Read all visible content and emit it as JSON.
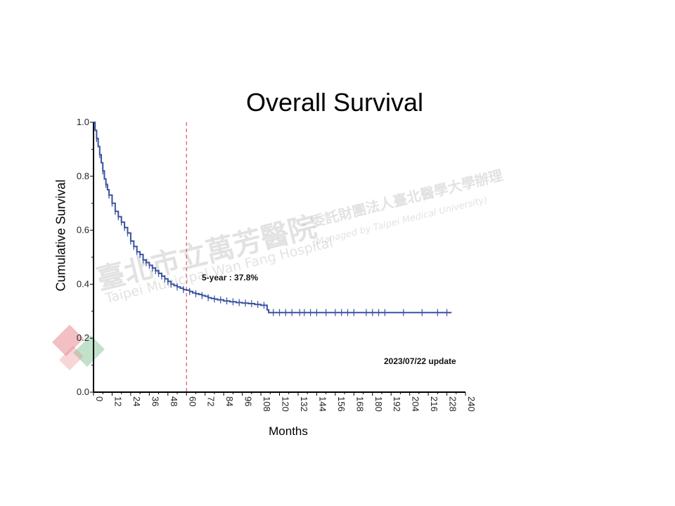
{
  "slide": {
    "title": "Overall Survival",
    "annotation_5yr": "5-year : 37.8%",
    "update_note": "2023/07/22 update"
  },
  "watermark": {
    "chinese_name": "臺北市立萬芳醫院",
    "chinese_sub": "- 委託財團法人臺北醫學大學辦理",
    "english_name": "Taipei Municipal Wan Fang Hospital",
    "english_sub": "(Managed by Taipei Medical University)"
  },
  "colors": {
    "curve": "#3a52a0",
    "reference_line": "#e0505a",
    "axis": "#000000",
    "logo_red": "#e88a8f",
    "logo_green": "#8fc8a0"
  },
  "chart_data": {
    "type": "line",
    "title": "Overall Survival",
    "xlabel": "Months",
    "ylabel": "Cumulative Survival",
    "xlim": [
      0,
      240
    ],
    "ylim": [
      0,
      1.0
    ],
    "x_ticks": [
      0,
      12,
      24,
      36,
      48,
      60,
      72,
      84,
      96,
      108,
      120,
      132,
      144,
      156,
      168,
      180,
      192,
      204,
      216,
      228,
      240
    ],
    "y_ticks": [
      "0.0",
      "0.2",
      "0.4",
      "0.6",
      "0.8",
      "1.0"
    ],
    "y_tick_values": [
      0,
      0.2,
      0.4,
      0.6,
      0.8,
      1.0
    ],
    "reference_line_x": 60,
    "grid": false,
    "series": [
      {
        "step": true,
        "x": [
          0,
          1,
          2,
          3,
          4,
          5,
          6,
          7,
          8,
          9,
          10,
          12,
          14,
          16,
          18,
          20,
          22,
          24,
          26,
          28,
          30,
          32,
          34,
          36,
          38,
          40,
          42,
          44,
          46,
          48,
          50,
          52,
          54,
          56,
          58,
          60,
          62,
          64,
          66,
          68,
          70,
          72,
          74,
          76,
          78,
          80,
          84,
          88,
          92,
          96,
          100,
          104,
          108,
          112,
          113,
          120,
          132,
          144,
          156,
          168,
          180,
          192,
          204,
          216,
          228,
          231
        ],
        "y": [
          1.0,
          0.97,
          0.94,
          0.91,
          0.88,
          0.85,
          0.82,
          0.79,
          0.77,
          0.75,
          0.73,
          0.7,
          0.67,
          0.65,
          0.63,
          0.61,
          0.59,
          0.56,
          0.54,
          0.52,
          0.51,
          0.49,
          0.48,
          0.47,
          0.46,
          0.45,
          0.44,
          0.43,
          0.42,
          0.41,
          0.4,
          0.395,
          0.39,
          0.385,
          0.38,
          0.378,
          0.373,
          0.368,
          0.365,
          0.362,
          0.358,
          0.355,
          0.35,
          0.347,
          0.345,
          0.342,
          0.338,
          0.335,
          0.332,
          0.33,
          0.328,
          0.325,
          0.322,
          0.305,
          0.295,
          0.295,
          0.295,
          0.295,
          0.295,
          0.295,
          0.295,
          0.295,
          0.295,
          0.295,
          0.295,
          0.295
        ],
        "censored_x": [
          2,
          4,
          6,
          8,
          10,
          12,
          14,
          16,
          18,
          20,
          22,
          24,
          26,
          28,
          30,
          32,
          34,
          36,
          38,
          40,
          42,
          44,
          46,
          48,
          50,
          54,
          58,
          62,
          66,
          70,
          74,
          78,
          82,
          86,
          90,
          94,
          98,
          102,
          106,
          110,
          116,
          120,
          124,
          128,
          133,
          136,
          140,
          144,
          150,
          156,
          160,
          164,
          168,
          176,
          180,
          184,
          188,
          200,
          212,
          222,
          228
        ]
      }
    ]
  }
}
